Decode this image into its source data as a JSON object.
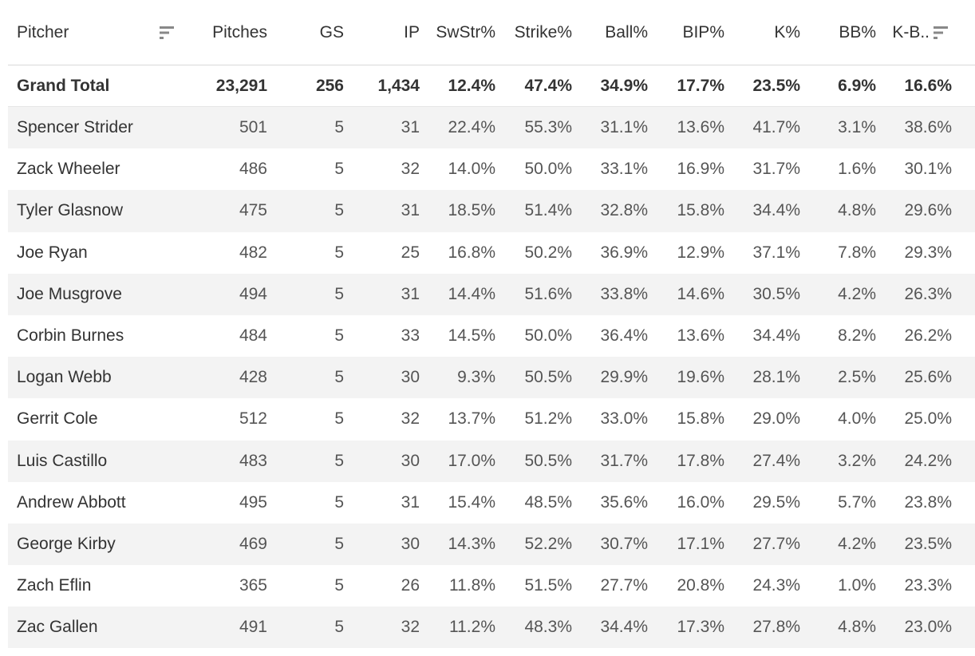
{
  "chart_data": {
    "type": "table",
    "columns": [
      "Pitcher",
      "Pitches",
      "GS",
      "IP",
      "SwStr%",
      "Strike%",
      "Ball%",
      "BIP%",
      "K%",
      "BB%",
      "K-B.."
    ],
    "total": {
      "label": "Grand Total",
      "values": [
        "23,291",
        "256",
        "1,434",
        "12.4%",
        "47.4%",
        "34.9%",
        "17.7%",
        "23.5%",
        "6.9%",
        "16.6%"
      ]
    },
    "rows": [
      {
        "pitcher": "Spencer Strider",
        "values": [
          "501",
          "5",
          "31",
          "22.4%",
          "55.3%",
          "31.1%",
          "13.6%",
          "41.7%",
          "3.1%",
          "38.6%"
        ]
      },
      {
        "pitcher": "Zack Wheeler",
        "values": [
          "486",
          "5",
          "32",
          "14.0%",
          "50.0%",
          "33.1%",
          "16.9%",
          "31.7%",
          "1.6%",
          "30.1%"
        ]
      },
      {
        "pitcher": "Tyler Glasnow",
        "values": [
          "475",
          "5",
          "31",
          "18.5%",
          "51.4%",
          "32.8%",
          "15.8%",
          "34.4%",
          "4.8%",
          "29.6%"
        ]
      },
      {
        "pitcher": "Joe Ryan",
        "values": [
          "482",
          "5",
          "25",
          "16.8%",
          "50.2%",
          "36.9%",
          "12.9%",
          "37.1%",
          "7.8%",
          "29.3%"
        ]
      },
      {
        "pitcher": "Joe Musgrove",
        "values": [
          "494",
          "5",
          "31",
          "14.4%",
          "51.6%",
          "33.8%",
          "14.6%",
          "30.5%",
          "4.2%",
          "26.3%"
        ]
      },
      {
        "pitcher": "Corbin Burnes",
        "values": [
          "484",
          "5",
          "33",
          "14.5%",
          "50.0%",
          "36.4%",
          "13.6%",
          "34.4%",
          "8.2%",
          "26.2%"
        ]
      },
      {
        "pitcher": "Logan Webb",
        "values": [
          "428",
          "5",
          "30",
          "9.3%",
          "50.5%",
          "29.9%",
          "19.6%",
          "28.1%",
          "2.5%",
          "25.6%"
        ]
      },
      {
        "pitcher": "Gerrit Cole",
        "values": [
          "512",
          "5",
          "32",
          "13.7%",
          "51.2%",
          "33.0%",
          "15.8%",
          "29.0%",
          "4.0%",
          "25.0%"
        ]
      },
      {
        "pitcher": "Luis Castillo",
        "values": [
          "483",
          "5",
          "30",
          "17.0%",
          "50.5%",
          "31.7%",
          "17.8%",
          "27.4%",
          "3.2%",
          "24.2%"
        ]
      },
      {
        "pitcher": "Andrew Abbott",
        "values": [
          "495",
          "5",
          "31",
          "15.4%",
          "48.5%",
          "35.6%",
          "16.0%",
          "29.5%",
          "5.7%",
          "23.8%"
        ]
      },
      {
        "pitcher": "George Kirby",
        "values": [
          "469",
          "5",
          "30",
          "14.3%",
          "52.2%",
          "30.7%",
          "17.1%",
          "27.7%",
          "4.2%",
          "23.5%"
        ]
      },
      {
        "pitcher": "Zach Eflin",
        "values": [
          "365",
          "5",
          "26",
          "11.8%",
          "51.5%",
          "27.7%",
          "20.8%",
          "24.3%",
          "1.0%",
          "23.3%"
        ]
      },
      {
        "pitcher": "Zac Gallen",
        "values": [
          "491",
          "5",
          "32",
          "11.2%",
          "48.3%",
          "34.4%",
          "17.3%",
          "27.8%",
          "4.8%",
          "23.0%"
        ]
      }
    ]
  },
  "icons": {
    "pitcher_sort": "sort-descending-icon",
    "kbb_sort": "sort-descending-icon"
  },
  "colors": {
    "row_shade": "#f3f3f3",
    "text": "#333333",
    "icon": "#888888"
  }
}
